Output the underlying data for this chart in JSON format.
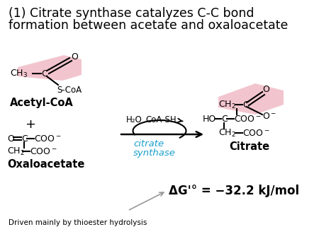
{
  "title_line1": "(1) Citrate synthase catalyzes C-C bond",
  "title_line2": "formation between acetate and oxaloacetate",
  "title_fontsize": 12.5,
  "title_color": "#000000",
  "bg_color": "#ffffff",
  "pink_bg": "#f2c5ce",
  "cyan_color": "#1a9fcc",
  "black": "#000000",
  "delta_g_text": "ΔG'° = −32.2 kJ/mol",
  "driven_text": "Driven mainly by thioester hydrolysis",
  "acetyl_coa_label": "Acetyl-CoA",
  "plus_label": "+",
  "oxaloacetate_label": "Oxaloacetate",
  "citrate_label": "Citrate",
  "h2o_label": "H₂O",
  "coa_sh_label": "CoA-SH",
  "citrate_synthase_line1": "citrate",
  "citrate_synthase_line2": "synthase"
}
